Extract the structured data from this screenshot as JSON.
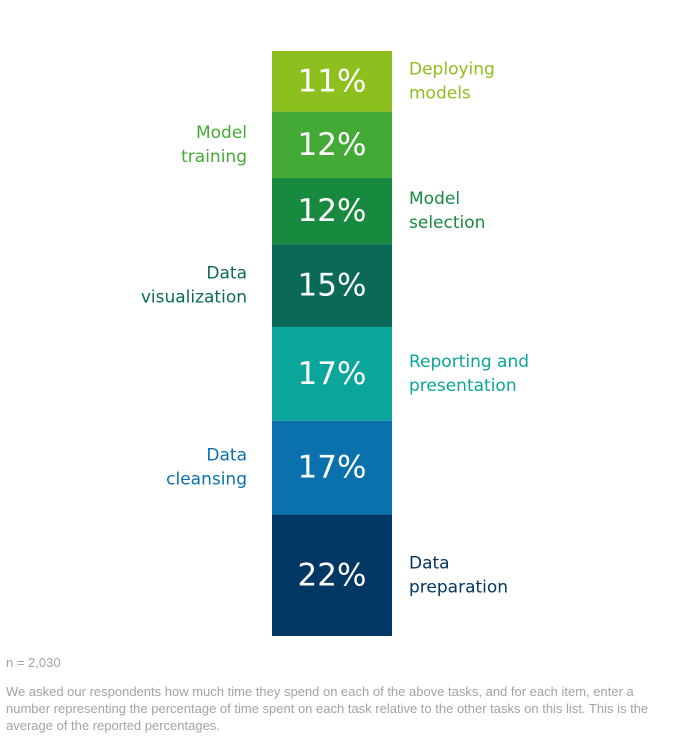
{
  "chart_data": {
    "type": "bar",
    "subtype": "stacked-single-column",
    "segments": [
      {
        "value": 11,
        "label": "11%",
        "category": "Deploying models",
        "lines": [
          "Deploying",
          "models"
        ],
        "side": "right",
        "color": "#8dbf1e",
        "text_color": "#8dbf1e"
      },
      {
        "value": 12,
        "label": "12%",
        "category": "Model training",
        "lines": [
          "Model",
          "training"
        ],
        "side": "left",
        "color": "#43aa35",
        "text_color": "#43aa35"
      },
      {
        "value": 12,
        "label": "12%",
        "category": "Model selection",
        "lines": [
          "Model",
          "selection"
        ],
        "side": "right",
        "color": "#178a40",
        "text_color": "#178a40"
      },
      {
        "value": 15,
        "label": "15%",
        "category": "Data visualization",
        "lines": [
          "Data",
          "visualization"
        ],
        "side": "left",
        "color": "#0b6a57",
        "text_color": "#0b6a57"
      },
      {
        "value": 17,
        "label": "17%",
        "category": "Reporting and presentation",
        "lines": [
          "Reporting and",
          "presentation"
        ],
        "side": "right",
        "color": "#0aa59b",
        "text_color": "#0aa59b"
      },
      {
        "value": 17,
        "label": "17%",
        "category": "Data cleansing",
        "lines": [
          "Data",
          "cleansing"
        ],
        "side": "left",
        "color": "#0a71ad",
        "text_color": "#0a71ad"
      },
      {
        "value": 22,
        "label": "22%",
        "category": "Data preparation",
        "lines": [
          "Data",
          "preparation"
        ],
        "side": "right",
        "color": "#003763",
        "text_color": "#003763"
      }
    ]
  },
  "footnotes": {
    "sample": "n = 2,030",
    "description": "We asked our respondents how much time they spend on each of the above tasks, and for each item, enter a number representing the percentage of time spent on each task relative to the other tasks on this list. This is the average of the reported percentages."
  }
}
